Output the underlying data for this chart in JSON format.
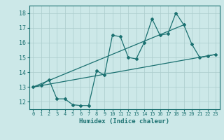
{
  "xlabel": "Humidex (Indice chaleur)",
  "bg_color": "#cce8e8",
  "grid_color": "#aacccc",
  "line_color": "#1a7070",
  "xlim": [
    -0.5,
    23.5
  ],
  "ylim": [
    11.5,
    18.5
  ],
  "xticks": [
    0,
    1,
    2,
    3,
    4,
    5,
    6,
    7,
    8,
    9,
    10,
    11,
    12,
    13,
    14,
    15,
    16,
    17,
    18,
    19,
    20,
    21,
    22,
    23
  ],
  "yticks": [
    12,
    13,
    14,
    15,
    16,
    17,
    18
  ],
  "line1_x": [
    0,
    1,
    2,
    3,
    4,
    5,
    6,
    7,
    8,
    9,
    10,
    11,
    12,
    13,
    14,
    15,
    16,
    17,
    18,
    19,
    20,
    21,
    22,
    23
  ],
  "line1_y": [
    13.0,
    13.1,
    13.5,
    12.2,
    12.2,
    11.8,
    11.75,
    11.75,
    14.1,
    13.8,
    16.5,
    16.4,
    15.0,
    14.9,
    16.0,
    17.6,
    16.5,
    16.6,
    18.0,
    17.2,
    15.9,
    15.0,
    15.1,
    15.2
  ],
  "line2_x": [
    0,
    23
  ],
  "line2_y": [
    13.0,
    15.2
  ],
  "line3_x": [
    0,
    19
  ],
  "line3_y": [
    13.0,
    17.2
  ]
}
